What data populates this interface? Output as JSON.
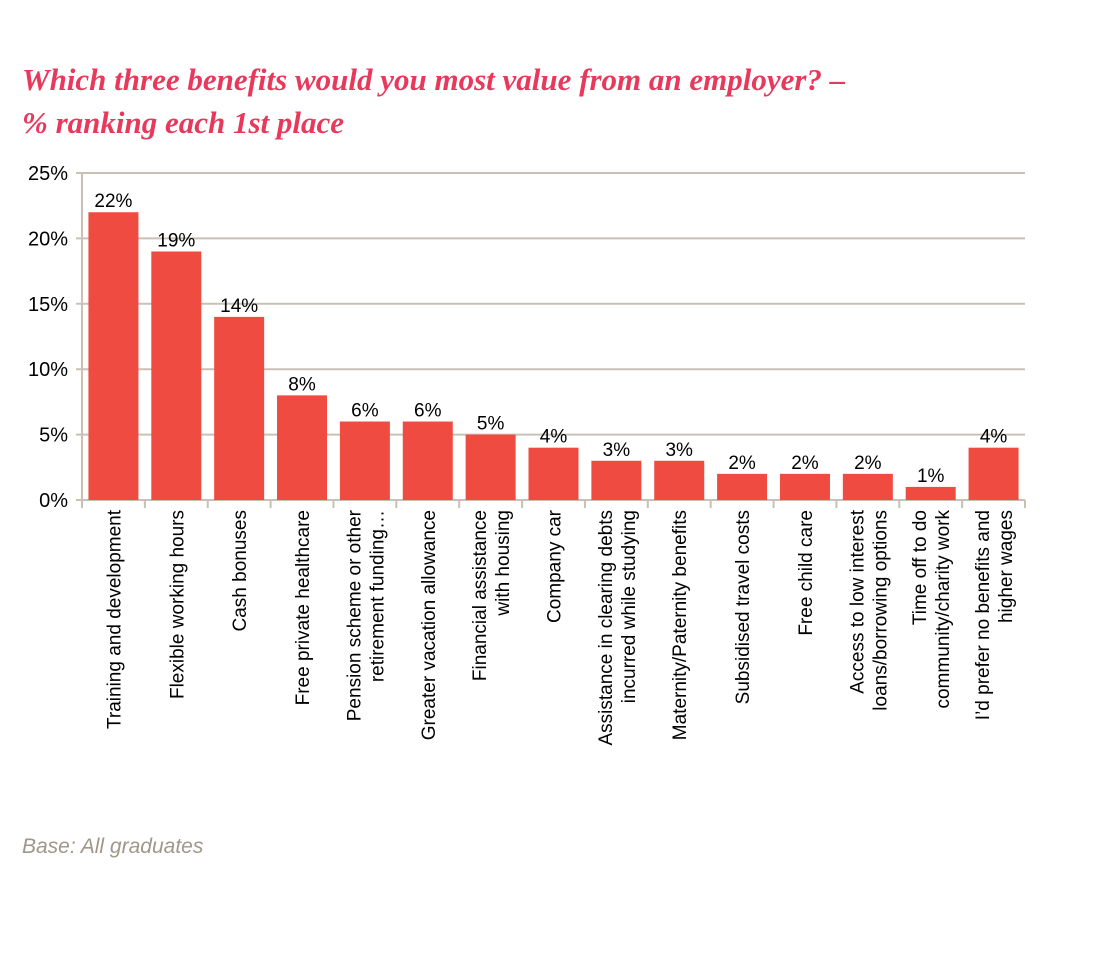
{
  "chart_data": {
    "type": "bar",
    "title": [
      "Which three benefits would you most value from an employer? –",
      "% ranking each 1st place"
    ],
    "categories": [
      [
        "Training and development"
      ],
      [
        "Flexible working hours"
      ],
      [
        "Cash bonuses"
      ],
      [
        "Free private healthcare"
      ],
      [
        "Pension scheme or other",
        "retirement funding…"
      ],
      [
        "Greater vacation allowance"
      ],
      [
        "Financial assistance",
        "with housing"
      ],
      [
        "Company car"
      ],
      [
        "Assistance in clearing debts",
        "incurred while studying"
      ],
      [
        "Maternity/Paternity benefits"
      ],
      [
        "Subsidised travel costs"
      ],
      [
        "Free child care"
      ],
      [
        "Access to low interest",
        "loans/borrowing options"
      ],
      [
        "Time off to do",
        "community/charity work"
      ],
      [
        "I’d prefer no benefits and",
        "higher wages"
      ]
    ],
    "values": [
      22,
      19,
      14,
      8,
      6,
      6,
      5,
      4,
      3,
      3,
      2,
      2,
      2,
      1,
      4
    ],
    "value_labels": [
      "22%",
      "19%",
      "14%",
      "8%",
      "6%",
      "6%",
      "5%",
      "4%",
      "3%",
      "3%",
      "2%",
      "2%",
      "2%",
      "1%",
      "4%"
    ],
    "color": "#f04b41",
    "ylim": [
      0,
      25
    ],
    "yticks": [
      {
        "value": 0,
        "label": "0%"
      },
      {
        "value": 5,
        "label": "5%"
      },
      {
        "value": 10,
        "label": "10%"
      },
      {
        "value": 15,
        "label": "15%"
      },
      {
        "value": 20,
        "label": "20%"
      },
      {
        "value": 25,
        "label": "25%"
      }
    ],
    "grid": true,
    "note": "Base: All graduates"
  }
}
